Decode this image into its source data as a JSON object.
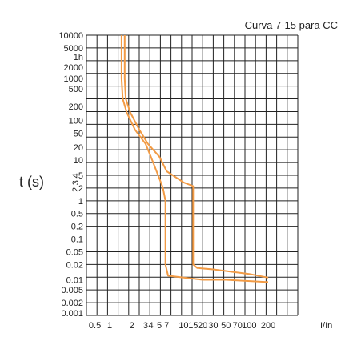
{
  "chart_data": {
    "type": "line",
    "title": "Curva 7-15 para CC",
    "xlabel": "I/In",
    "ylabel": "t (s)",
    "x_scale": "categorical-log-like",
    "y_scale": "categorical-log-like",
    "x_tick_labels": [
      "0.5",
      "1",
      "2",
      "3",
      "4",
      "5",
      "7",
      "10",
      "15",
      "20",
      "30",
      "50",
      "70",
      "100",
      "200"
    ],
    "y_tick_labels": [
      "10000",
      "5000",
      "1h",
      "2000",
      "1000",
      "500",
      "200",
      "100",
      "50",
      "20",
      "10",
      "5",
      "2",
      "1",
      "0.5",
      "0.2",
      "0.1",
      "0.05",
      "0.02",
      "0.01",
      "0.005",
      "0.002",
      "0.001"
    ],
    "y_tick_labels_vertical": [
      "4",
      "3",
      "2"
    ],
    "series": [
      {
        "color": "#F29B45",
        "points": [
          [
            "1.45",
            "10000"
          ],
          [
            "1.45",
            "1000"
          ],
          [
            "1.5",
            "300"
          ],
          [
            "1.7",
            "150"
          ],
          [
            "2.2",
            "60"
          ],
          [
            "3.0",
            "25"
          ],
          [
            "4.0",
            "12"
          ],
          [
            "5.0",
            "4"
          ],
          [
            "5.9",
            "2"
          ],
          [
            "6.6",
            "1"
          ],
          [
            "6.6",
            "0.1"
          ],
          [
            "6.6",
            "0.02"
          ],
          [
            "7.2",
            "0.012"
          ],
          [
            "10",
            "0.011"
          ],
          [
            "20",
            "0.01"
          ],
          [
            "50",
            "0.01"
          ],
          [
            "200",
            "0.0085"
          ]
        ]
      },
      {
        "color": "#F29B45",
        "points": [
          [
            "1.6",
            "10000"
          ],
          [
            "1.6",
            "1000"
          ],
          [
            "1.65",
            "300"
          ],
          [
            "1.9",
            "150"
          ],
          [
            "2.5",
            "60"
          ],
          [
            "3.4",
            "25"
          ],
          [
            "5.0",
            "12"
          ],
          [
            "7.0",
            "6"
          ],
          [
            "10",
            "3"
          ],
          [
            "15",
            "2.3"
          ],
          [
            "15",
            "1"
          ],
          [
            "15",
            "0.1"
          ],
          [
            "15",
            "0.02"
          ],
          [
            "17",
            "0.017"
          ],
          [
            "30",
            "0.016"
          ],
          [
            "100",
            "0.013"
          ],
          [
            "200",
            "0.011"
          ]
        ]
      }
    ]
  }
}
